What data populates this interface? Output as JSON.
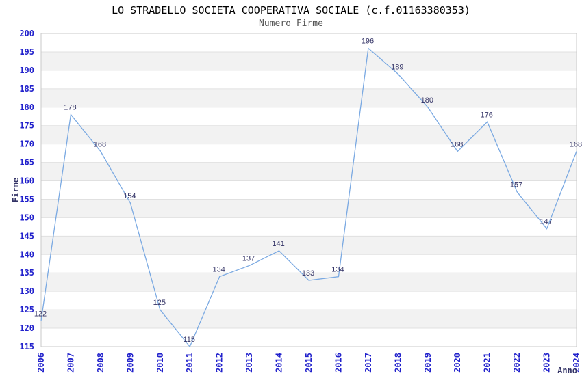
{
  "title": "LO STRADELLO SOCIETA COOPERATIVA SOCIALE (c.f.01163380353)",
  "subtitle": "Numero Firme",
  "chart_data": {
    "type": "line",
    "x": [
      2006,
      2007,
      2008,
      2009,
      2010,
      2011,
      2012,
      2013,
      2014,
      2015,
      2016,
      2017,
      2018,
      2019,
      2020,
      2021,
      2022,
      2023,
      2024
    ],
    "values": [
      122,
      178,
      168,
      154,
      125,
      115,
      134,
      137,
      141,
      133,
      134,
      196,
      189,
      180,
      168,
      176,
      157,
      147,
      168
    ],
    "title": "LO STRADELLO SOCIETA COOPERATIVA SOCIALE (c.f.01163380353)",
    "subtitle": "Numero Firme",
    "xlabel": "Anno",
    "ylabel": "Firme",
    "ylim": [
      115,
      200
    ],
    "ytick_step": 5,
    "grid": "horizontal-only",
    "banded_background": true,
    "legend": "none"
  },
  "colors": {
    "line": "#7aa9e2",
    "band": "#f2f2f2",
    "gridline": "#e0e0e0",
    "plot_border": "#c9c9c9",
    "tick_label": "#2222cc",
    "data_label": "#333366",
    "axis_title": "#333366",
    "title": "#000000",
    "subtitle": "#555555",
    "background": "#ffffff"
  }
}
